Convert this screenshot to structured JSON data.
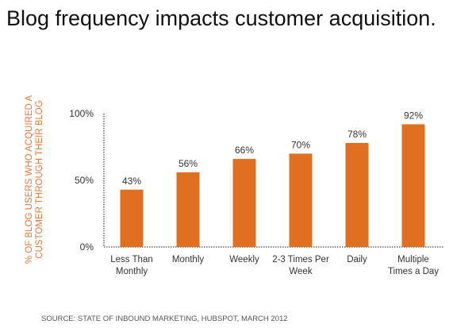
{
  "title": "Blog frequency impacts customer acquisition.",
  "source": "SOURCE: STATE OF INBOUND MARKETING, HUBSPOT, MARCH 2012",
  "chart_data": {
    "type": "bar",
    "title": "",
    "ylabel_lines": [
      "% OF BLOG USERS WHO ACQUIRED A",
      "CUSTOMER  THROUGH THEIR BLOG"
    ],
    "xlabel": "",
    "categories": [
      [
        "Less Than",
        "Monthly"
      ],
      [
        "Monthly"
      ],
      [
        "Weekly"
      ],
      [
        "2-3 Times Per",
        "Week"
      ],
      [
        "Daily"
      ],
      [
        "Multiple",
        "Times a Day"
      ]
    ],
    "values": [
      43,
      56,
      66,
      70,
      78,
      92
    ],
    "data_labels": [
      "43%",
      "56%",
      "66%",
      "70%",
      "78%",
      "92%"
    ],
    "yticks": [
      0,
      50,
      100
    ],
    "ytick_labels": [
      "0%",
      "50%",
      "100%"
    ],
    "ylim": [
      0,
      100
    ],
    "grid": false,
    "bar_color": "#E07020",
    "axis_label_color": "#E8783A"
  }
}
